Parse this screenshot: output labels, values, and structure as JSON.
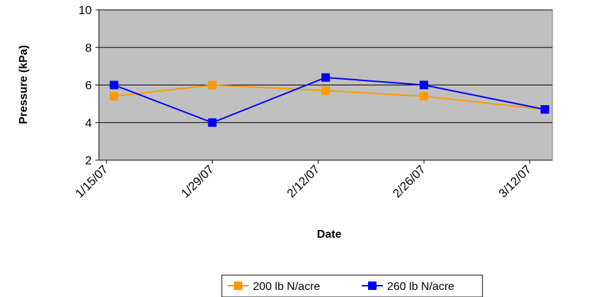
{
  "chart_data": {
    "type": "line",
    "title": "",
    "xlabel": "Date",
    "ylabel": "Pressure (kPa)",
    "ylim": [
      2,
      10
    ],
    "yticks": [
      2,
      4,
      6,
      8,
      10
    ],
    "xticks": [
      "1/15/07",
      "1/29/07",
      "2/12/07",
      "2/26/07",
      "3/12/07"
    ],
    "x": [
      "1/16/07",
      "1/29/07",
      "2/13/07",
      "2/26/07",
      "3/14/07"
    ],
    "grid": true,
    "plot_background": "#c0c0c0",
    "legend_position": "bottom",
    "series": [
      {
        "name": "200 lb N/acre",
        "color": "#ff9900",
        "values": [
          5.4,
          6.0,
          5.7,
          5.4,
          4.7
        ]
      },
      {
        "name": "260 lb N/acre",
        "color": "#0000ff",
        "values": [
          6.0,
          4.0,
          6.4,
          6.0,
          4.7
        ]
      }
    ]
  }
}
